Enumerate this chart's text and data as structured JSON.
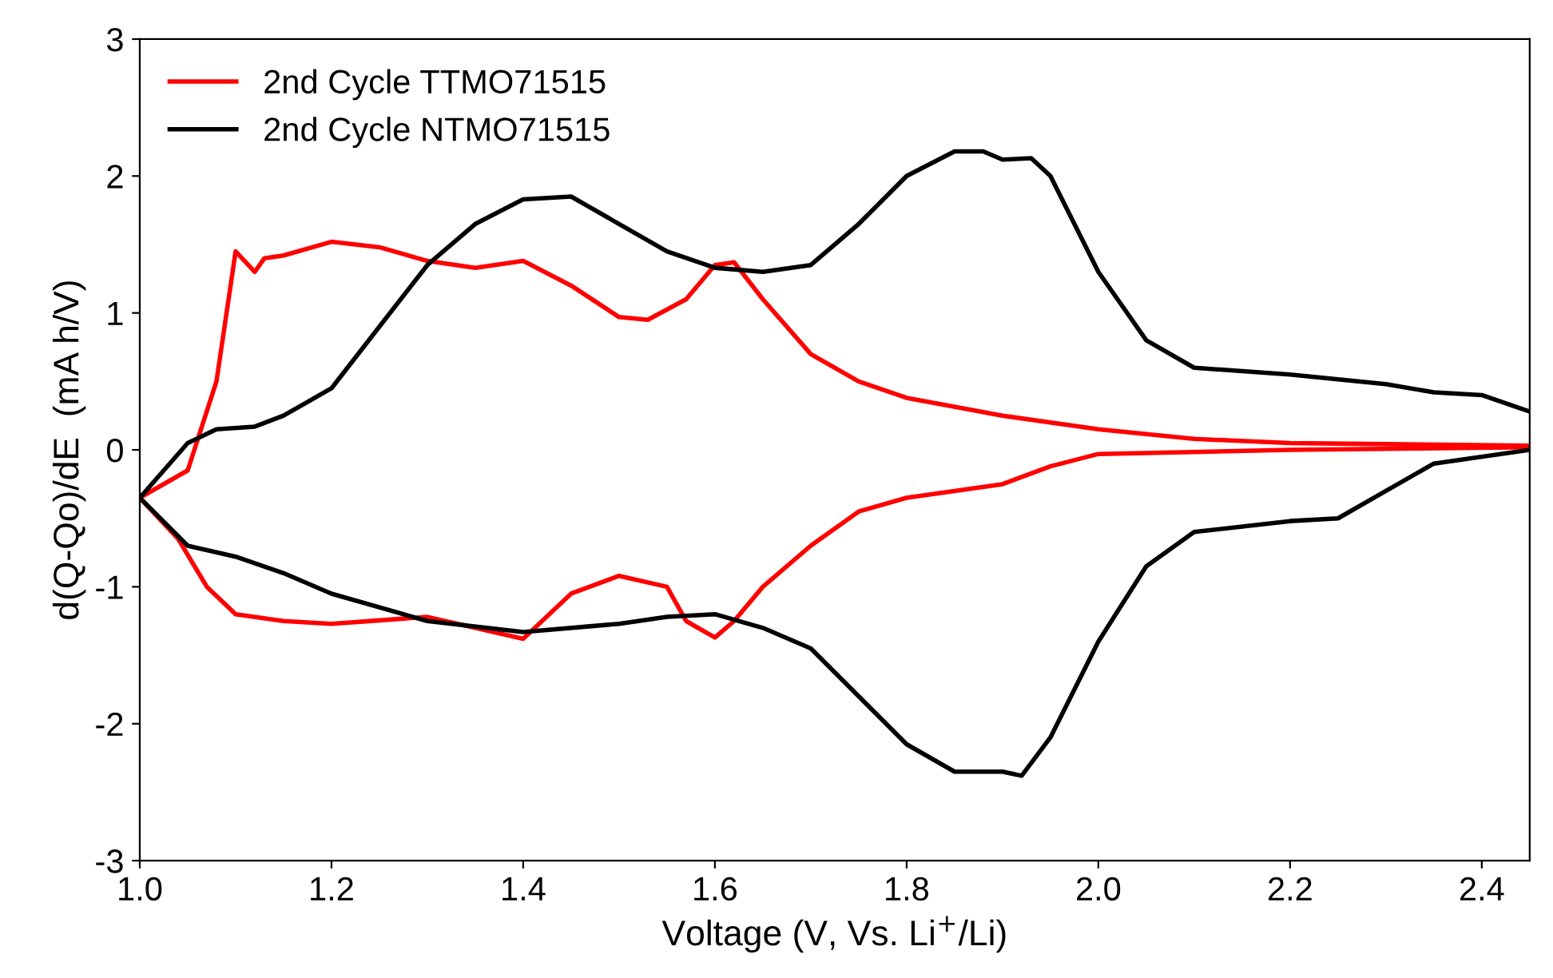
{
  "chart_data": {
    "type": "line",
    "xlabel": "Voltage (V, Vs. Li$^{+}$/Li)",
    "ylabel": "d(Q-Qo)/dE  (mA h/V)",
    "xlim": [
      1.0,
      2.45
    ],
    "ylim": [
      -3,
      3
    ],
    "xticks": [
      {
        "value": 1.0,
        "label": "1.0"
      },
      {
        "value": 1.2,
        "label": "1.2"
      },
      {
        "value": 1.4,
        "label": "1.4"
      },
      {
        "value": 1.6,
        "label": "1.6"
      },
      {
        "value": 1.8,
        "label": "1.8"
      },
      {
        "value": 2.0,
        "label": "2.0"
      },
      {
        "value": 2.2,
        "label": "2.2"
      },
      {
        "value": 2.4,
        "label": "2.4"
      }
    ],
    "yticks": [
      -3,
      -2,
      -1,
      0,
      1,
      2,
      3
    ],
    "legend": "top left",
    "grid": false,
    "marker": "none",
    "line_style": "solid",
    "series": [
      {
        "name": "2nd Cycle TTMO71515",
        "color": "#ff0000",
        "x": [
          1.0,
          1.05,
          1.08,
          1.1,
          1.12,
          1.13,
          1.15,
          1.2,
          1.25,
          1.3,
          1.35,
          1.4,
          1.45,
          1.5,
          1.53,
          1.57,
          1.6,
          1.62,
          1.65,
          1.7,
          1.75,
          1.8,
          1.9,
          2.0,
          2.1,
          2.2,
          2.45
        ],
        "values": [
          -0.35,
          -0.15,
          0.5,
          1.45,
          1.3,
          1.4,
          1.42,
          1.52,
          1.48,
          1.38,
          1.33,
          1.38,
          1.2,
          0.97,
          0.95,
          1.1,
          1.35,
          1.37,
          1.1,
          0.7,
          0.5,
          0.38,
          0.25,
          0.15,
          0.08,
          0.05,
          0.03
        ]
      },
      {
        "name": "2nd Cycle NTMO71515",
        "color": "#000000",
        "x": [
          1.0,
          1.05,
          1.08,
          1.12,
          1.15,
          1.2,
          1.25,
          1.3,
          1.35,
          1.4,
          1.45,
          1.5,
          1.55,
          1.6,
          1.65,
          1.7,
          1.75,
          1.8,
          1.85,
          1.88,
          1.9,
          1.93,
          1.95,
          2.0,
          2.05,
          2.1,
          2.2,
          2.3,
          2.35,
          2.4,
          2.45
        ],
        "values": [
          -0.35,
          0.05,
          0.15,
          0.17,
          0.25,
          0.45,
          0.9,
          1.35,
          1.65,
          1.83,
          1.85,
          1.65,
          1.45,
          1.33,
          1.3,
          1.35,
          1.65,
          2.0,
          2.18,
          2.18,
          2.12,
          2.13,
          2.0,
          1.3,
          0.8,
          0.6,
          0.55,
          0.48,
          0.42,
          0.4,
          0.28
        ]
      },
      {
        "color": "#ff0000",
        "x": [
          1.0,
          1.04,
          1.07,
          1.1,
          1.15,
          1.2,
          1.3,
          1.35,
          1.4,
          1.45,
          1.5,
          1.55,
          1.57,
          1.6,
          1.62,
          1.65,
          1.7,
          1.75,
          1.8,
          1.9,
          1.95,
          2.0,
          2.2,
          2.45
        ],
        "values": [
          -0.35,
          -0.65,
          -1.0,
          -1.2,
          -1.25,
          -1.27,
          -1.22,
          -1.3,
          -1.38,
          -1.05,
          -0.92,
          -1.0,
          -1.25,
          -1.37,
          -1.25,
          -1.0,
          -0.7,
          -0.45,
          -0.35,
          -0.25,
          -0.12,
          -0.03,
          0.0,
          0.02
        ]
      },
      {
        "color": "#000000",
        "x": [
          1.0,
          1.05,
          1.1,
          1.15,
          1.2,
          1.3,
          1.4,
          1.5,
          1.55,
          1.6,
          1.65,
          1.7,
          1.75,
          1.8,
          1.85,
          1.9,
          1.92,
          1.95,
          2.0,
          2.05,
          2.1,
          2.2,
          2.25,
          2.3,
          2.35,
          2.45
        ],
        "values": [
          -0.35,
          -0.7,
          -0.78,
          -0.9,
          -1.05,
          -1.25,
          -1.33,
          -1.27,
          -1.22,
          -1.2,
          -1.3,
          -1.45,
          -1.8,
          -2.15,
          -2.35,
          -2.35,
          -2.38,
          -2.1,
          -1.4,
          -0.85,
          -0.6,
          -0.52,
          -0.5,
          -0.3,
          -0.1,
          0.0
        ]
      }
    ]
  }
}
